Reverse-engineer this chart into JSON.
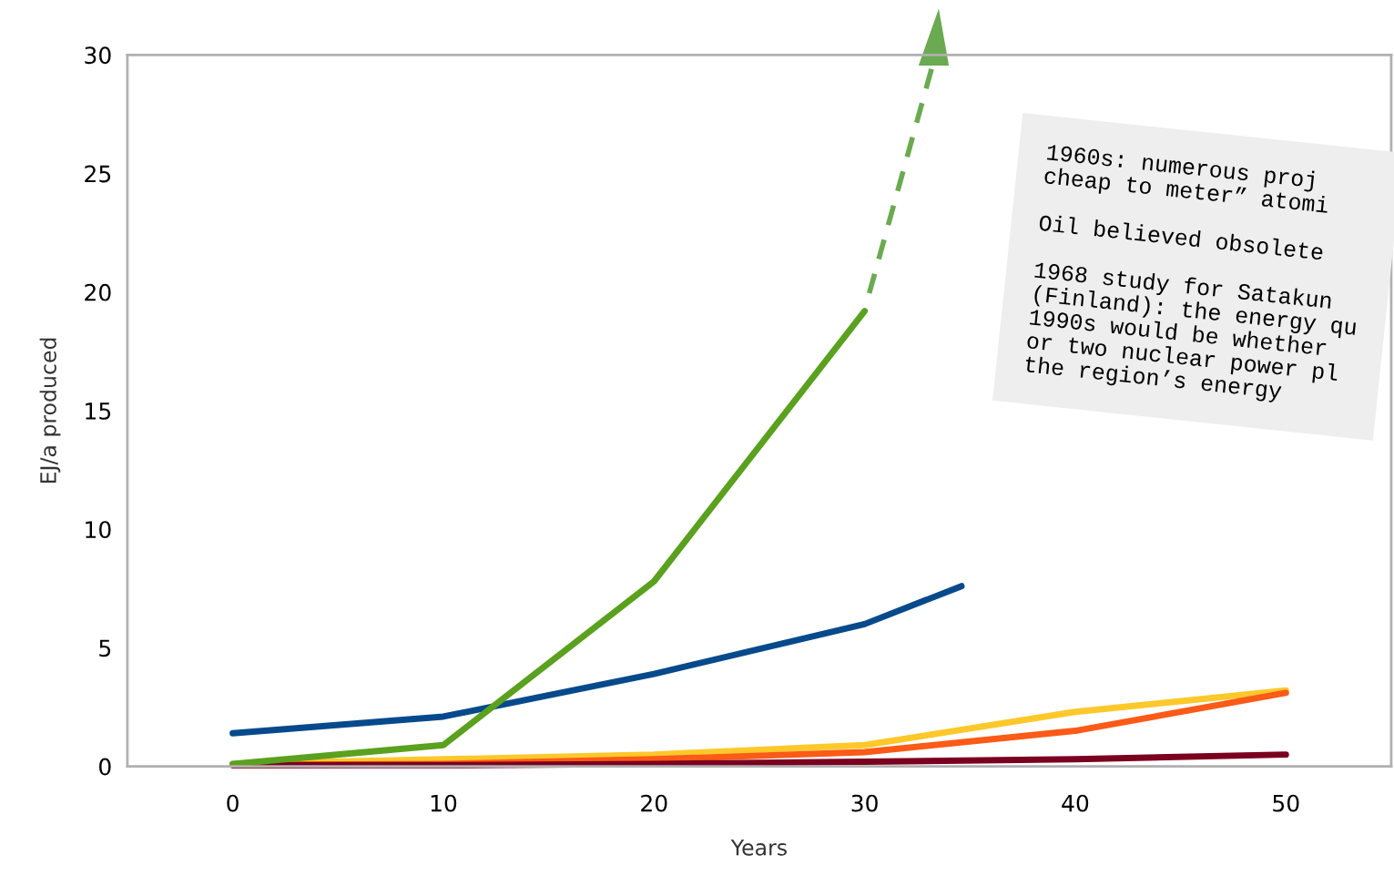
{
  "chart_data": {
    "type": "line",
    "xlabel": "Years",
    "ylabel": "EJ/a produced",
    "xlim": [
      -5,
      55
    ],
    "xticks": [
      0,
      10,
      20,
      30,
      40,
      50
    ],
    "ylim": [
      0,
      30
    ],
    "yticks": [
      0,
      5,
      10,
      15,
      20,
      25,
      30
    ],
    "grid": false,
    "legend": false,
    "marker": "none",
    "line_style": "solid",
    "series": [
      {
        "color": "#064a8c",
        "x": [
          0,
          10,
          20,
          30,
          34.6
        ],
        "values": [
          1.4,
          2.1,
          3.9,
          6.0,
          7.6
        ]
      },
      {
        "color": "#fdc82a",
        "x": [
          0,
          10,
          20,
          30,
          40,
          50
        ],
        "values": [
          0.1,
          0.3,
          0.5,
          0.9,
          2.3,
          3.2
        ]
      },
      {
        "color": "#fb5a17",
        "x": [
          0,
          10,
          20,
          30,
          40,
          50
        ],
        "values": [
          0.05,
          0.1,
          0.3,
          0.6,
          1.5,
          3.1
        ]
      },
      {
        "color": "#7b0020",
        "x": [
          0,
          10,
          20,
          30,
          40,
          50
        ],
        "values": [
          0.05,
          0.05,
          0.1,
          0.2,
          0.3,
          0.5
        ]
      },
      {
        "color": "#5aa11e",
        "x": [
          0,
          10,
          20,
          30
        ],
        "values": [
          0.1,
          0.9,
          7.8,
          19.2
        ]
      }
    ],
    "annotations": [
      "1960s: numerous proj\ncheap to meter” atomi\n\nOil believed obsolete\n\n1968 study for Satakun\n(Finland): the energy qu\n1990s would be whether\nor two nuclear power pl\nthe region’s energy"
    ]
  }
}
